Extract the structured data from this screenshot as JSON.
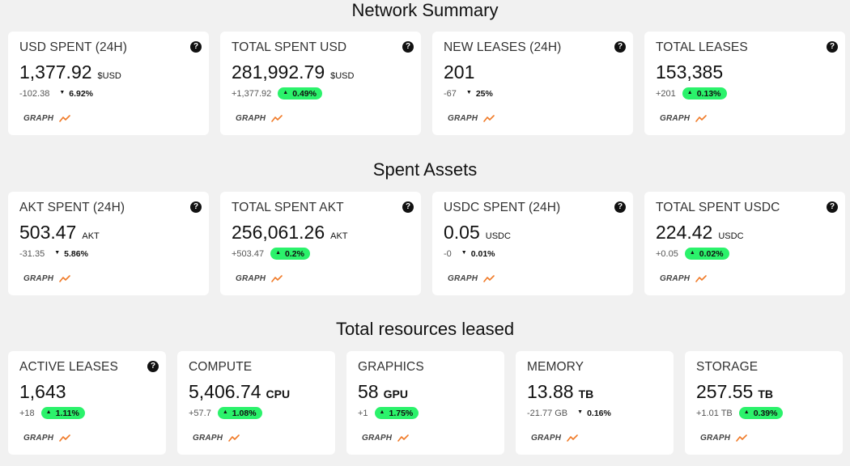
{
  "sections": [
    {
      "title": "Network Summary",
      "cards": [
        {
          "label": "USD SPENT (24H)",
          "value": "1,377.92",
          "unit": "$USD",
          "change": "-102.38",
          "pct": "6.92%",
          "trend": "down"
        },
        {
          "label": "TOTAL SPENT USD",
          "value": "281,992.79",
          "unit": "$USD",
          "change": "+1,377.92",
          "pct": "0.49%",
          "trend": "up"
        },
        {
          "label": "NEW LEASES (24H)",
          "value": "201",
          "unit": "",
          "change": "-67",
          "pct": "25%",
          "trend": "down"
        },
        {
          "label": "TOTAL LEASES",
          "value": "153,385",
          "unit": "",
          "change": "+201",
          "pct": "0.13%",
          "trend": "up"
        }
      ]
    },
    {
      "title": "Spent Assets",
      "cards": [
        {
          "label": "AKT SPENT (24H)",
          "value": "503.47",
          "unit": "AKT",
          "change": "-31.35",
          "pct": "5.86%",
          "trend": "down"
        },
        {
          "label": "TOTAL SPENT AKT",
          "value": "256,061.26",
          "unit": "AKT",
          "change": "+503.47",
          "pct": "0.2%",
          "trend": "up"
        },
        {
          "label": "USDC SPENT (24H)",
          "value": "0.05",
          "unit": "USDC",
          "change": "-0",
          "pct": "0.01%",
          "trend": "down"
        },
        {
          "label": "TOTAL SPENT USDC",
          "value": "224.42",
          "unit": "USDC",
          "change": "+0.05",
          "pct": "0.02%",
          "trend": "up"
        }
      ]
    },
    {
      "title": "Total resources leased",
      "cards": [
        {
          "label": "ACTIVE LEASES",
          "value": "1,643",
          "unit": "",
          "change": "+18",
          "pct": "1.11%",
          "trend": "up",
          "help": true
        },
        {
          "label": "COMPUTE",
          "value": "5,406.74",
          "unit": "CPU",
          "change": "+57.7",
          "pct": "1.08%",
          "trend": "up",
          "help": false
        },
        {
          "label": "GRAPHICS",
          "value": "58",
          "unit": "GPU",
          "change": "+1",
          "pct": "1.75%",
          "trend": "up",
          "help": false
        },
        {
          "label": "MEMORY",
          "value": "13.88",
          "unit": "TB",
          "change": "-21.77 GB",
          "pct": "0.16%",
          "trend": "down",
          "help": false
        },
        {
          "label": "STORAGE",
          "value": "257.55",
          "unit": "TB",
          "change": "+1.01 TB",
          "pct": "0.39%",
          "trend": "up",
          "help": false
        }
      ]
    }
  ],
  "help_symbol": "?",
  "graph_label": "GRAPH",
  "graph_icon": "trend-line-icon",
  "colors": {
    "background": "#f1f1f1",
    "card": "#ffffff",
    "positive_pill": "#2bf26b",
    "graph_icon": "#f07a28"
  }
}
